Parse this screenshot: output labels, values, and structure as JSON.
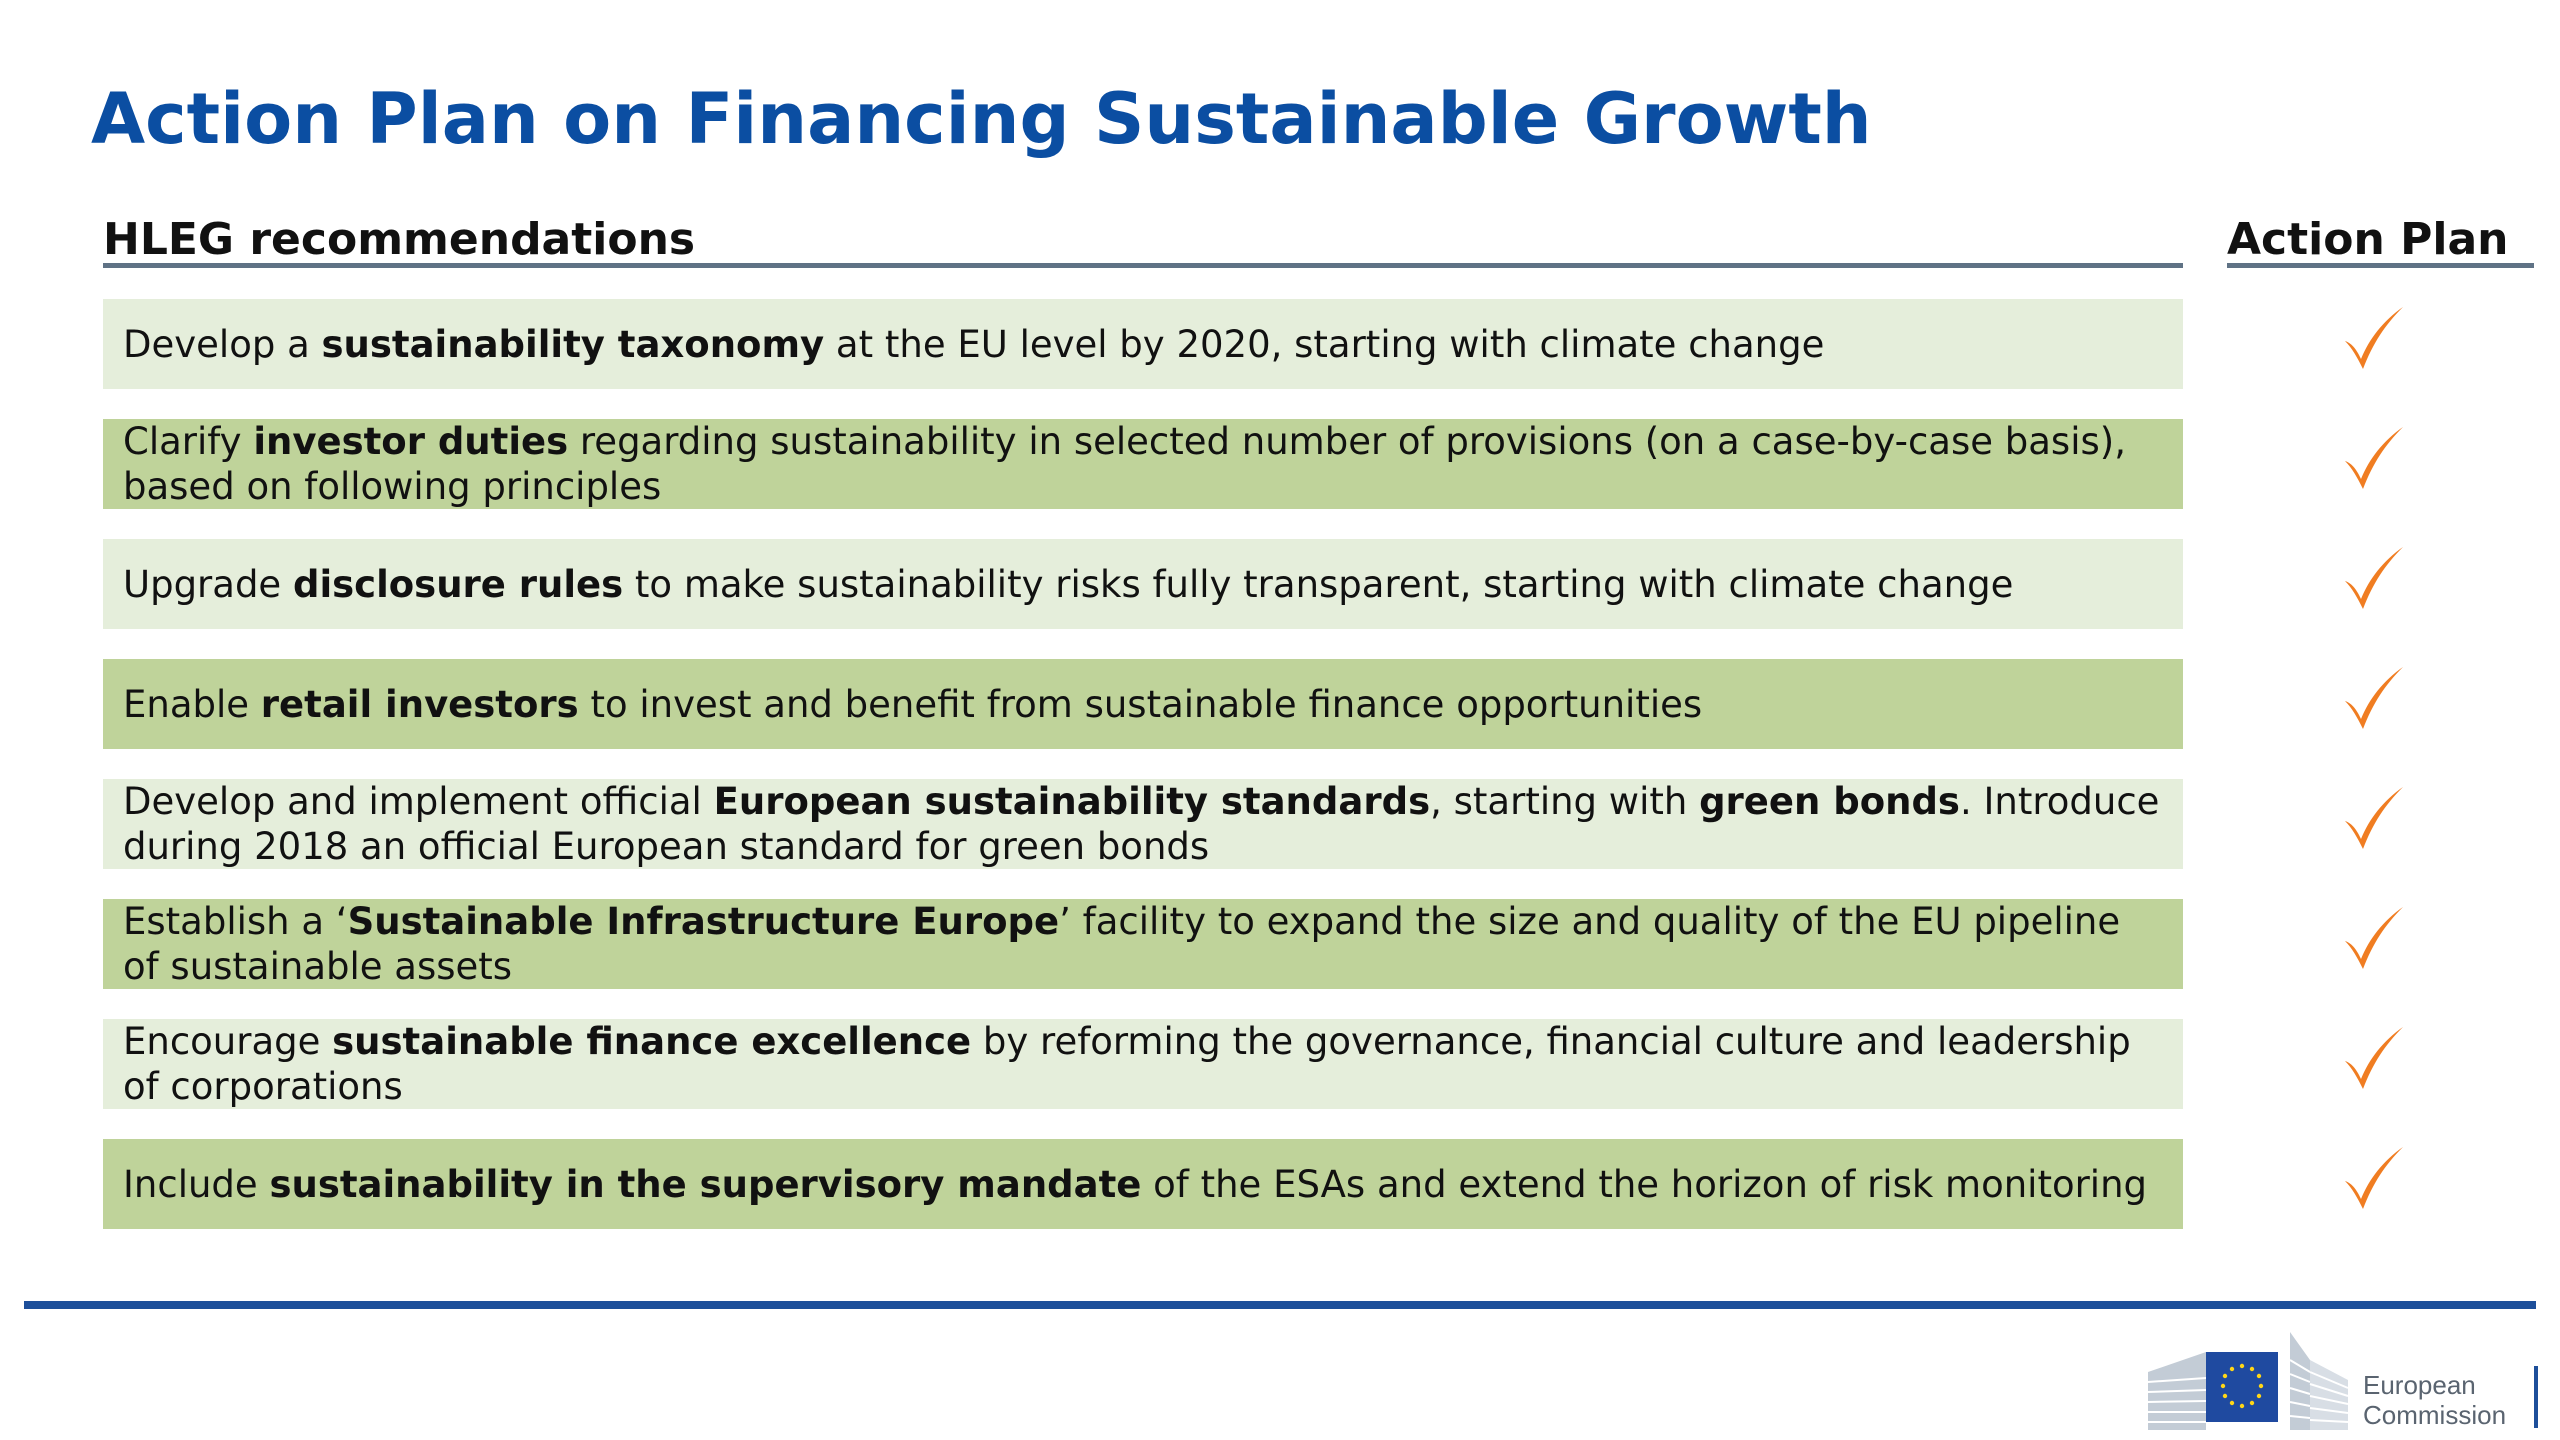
{
  "title": "Action Plan on Financing Sustainable Growth",
  "columns": {
    "recommendations": "HLEG recommendations",
    "action_plan": "Action Plan"
  },
  "rows": [
    {
      "shade": "light",
      "checked": true,
      "segments": [
        {
          "text": "Develop a ",
          "bold": false
        },
        {
          "text": "sustainability taxonomy",
          "bold": true
        },
        {
          "text": " at the EU level by 2020, starting with climate change",
          "bold": false
        }
      ]
    },
    {
      "shade": "dark",
      "checked": true,
      "segments": [
        {
          "text": "Clarify ",
          "bold": false
        },
        {
          "text": "investor duties",
          "bold": true
        },
        {
          "text": " regarding sustainability in selected number of provisions (on a case-by-case basis), based on following principles",
          "bold": false
        }
      ]
    },
    {
      "shade": "light",
      "checked": true,
      "segments": [
        {
          "text": "Upgrade ",
          "bold": false
        },
        {
          "text": "disclosure rules",
          "bold": true
        },
        {
          "text": " to make sustainability risks fully transparent, starting with climate change",
          "bold": false
        }
      ]
    },
    {
      "shade": "dark",
      "checked": true,
      "segments": [
        {
          "text": "Enable ",
          "bold": false
        },
        {
          "text": "retail investors",
          "bold": true
        },
        {
          "text": " to invest and benefit from sustainable finance opportunities",
          "bold": false
        }
      ]
    },
    {
      "shade": "light",
      "checked": true,
      "segments": [
        {
          "text": "Develop and implement official ",
          "bold": false
        },
        {
          "text": "European sustainability standards",
          "bold": true
        },
        {
          "text": ", starting with ",
          "bold": false
        },
        {
          "text": "green bonds",
          "bold": true
        },
        {
          "text": ". Introduce during 2018 an official European standard for green bonds",
          "bold": false
        }
      ]
    },
    {
      "shade": "dark",
      "checked": true,
      "segments": [
        {
          "text": "Establish a ‘",
          "bold": false
        },
        {
          "text": "Sustainable Infrastructure Europe",
          "bold": true
        },
        {
          "text": "’ facility to expand the size and quality of the EU pipeline of sustainable assets",
          "bold": false
        }
      ]
    },
    {
      "shade": "light",
      "checked": true,
      "segments": [
        {
          "text": "Encourage ",
          "bold": false
        },
        {
          "text": "sustainable finance excellence",
          "bold": true
        },
        {
          "text": " by reforming the governance, financial culture and leadership of corporations",
          "bold": false
        }
      ]
    },
    {
      "shade": "dark",
      "checked": true,
      "segments": [
        {
          "text": "Include ",
          "bold": false
        },
        {
          "text": "sustainability in the supervisory mandate",
          "bold": true
        },
        {
          "text": " of the ESAs and extend the horizon of risk monitoring",
          "bold": false
        }
      ]
    }
  ],
  "icons": {
    "check": "checkmark-icon",
    "logo": "european-commission-logo"
  },
  "colors": {
    "title": "#0b4ea2",
    "row_light": "#e5eedb",
    "row_dark": "#bfd39a",
    "check": "#f07d22",
    "footer_line": "#1d4f9a"
  },
  "logo": {
    "line1": "European",
    "line2": "Commission"
  }
}
